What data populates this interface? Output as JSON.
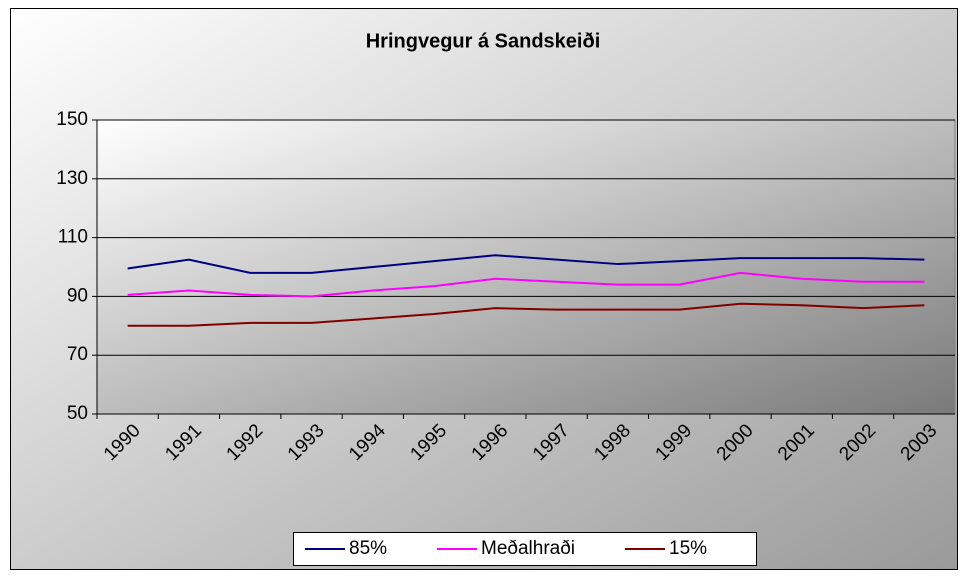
{
  "chart_data": {
    "type": "line",
    "title": "Hringvegur á Sandskeiði",
    "categories": [
      "1990",
      "1991",
      "1992",
      "1993",
      "1994",
      "1995",
      "1996",
      "1997",
      "1998",
      "1999",
      "2000",
      "2001",
      "2002",
      "2003"
    ],
    "series": [
      {
        "name": "85%",
        "color": "#000080",
        "values": [
          99.5,
          102.5,
          98,
          98,
          100,
          102,
          104,
          102.5,
          101,
          102,
          103,
          103,
          103,
          102.5
        ]
      },
      {
        "name": "Meðalhraði",
        "color": "#ff00ff",
        "values": [
          90.5,
          92,
          90.5,
          90,
          92,
          93.5,
          96,
          95,
          94,
          94,
          98,
          96,
          95,
          95
        ]
      },
      {
        "name": "15%",
        "color": "#800000",
        "values": [
          80,
          80,
          81,
          81,
          82.5,
          84,
          86,
          85.5,
          85.5,
          85.5,
          87.5,
          87,
          86,
          87
        ]
      }
    ],
    "ylim": [
      50,
      150
    ],
    "yticks": [
      50,
      70,
      90,
      110,
      130,
      150
    ],
    "grid": true,
    "legend": "bottom"
  }
}
